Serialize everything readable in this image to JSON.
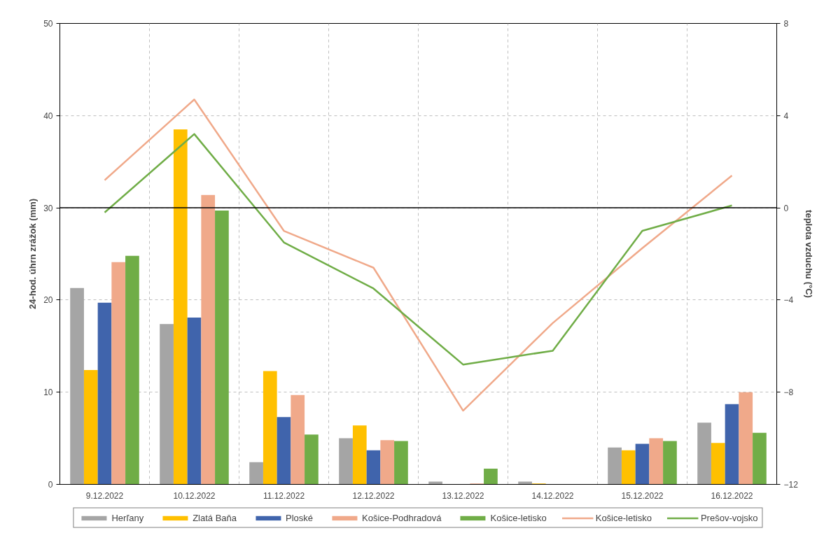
{
  "chart_data": {
    "type": "bar",
    "categories": [
      "9.12.2022",
      "10.12.2022",
      "11.12.2022",
      "12.12.2022",
      "13.12.2022",
      "14.12.2022",
      "15.12.2022",
      "16.12.2022"
    ],
    "ylabel": "24-hod. úhrn zrážok (mm)",
    "y2label": "teplota vzduchu (°C)",
    "ylim": [
      0,
      50
    ],
    "yticks": [
      0,
      10,
      20,
      30,
      40,
      50
    ],
    "y2lim": [
      -12,
      8
    ],
    "y2ticks": [
      -12,
      -8,
      -4,
      0,
      4,
      8
    ],
    "grid": true,
    "legend": "bottom",
    "ref_lines": [
      {
        "axis": "y2",
        "value": 0,
        "color": "#000000"
      }
    ],
    "series": [
      {
        "name": "Herľany",
        "color": "#a5a5a5",
        "values": [
          21.3,
          17.4,
          2.4,
          5.0,
          0.3,
          0.3,
          4.0,
          6.7
        ]
      },
      {
        "name": "Zlatá Baňa",
        "color": "#ffc000",
        "values": [
          12.4,
          38.5,
          12.3,
          6.4,
          0,
          0.1,
          3.7,
          4.5
        ]
      },
      {
        "name": "Ploské",
        "color": "#4064ac",
        "values": [
          19.7,
          18.1,
          7.3,
          3.7,
          0,
          0,
          4.4,
          8.7
        ]
      },
      {
        "name": "Košice-Podhradová",
        "color": "#f0a98a",
        "values": [
          24.1,
          31.4,
          9.7,
          4.8,
          0.1,
          0,
          5.0,
          10.0
        ]
      },
      {
        "name": "Košice-letisko",
        "color": "#70ad47",
        "values": [
          24.8,
          29.7,
          5.4,
          4.7,
          1.7,
          0,
          4.7,
          5.6
        ]
      },
      {
        "name": "Košice-letisko",
        "type": "line",
        "axis": "y2",
        "color": "#f0a98a",
        "values": [
          1.2,
          4.7,
          -1.0,
          -2.6,
          -8.8,
          -5.0,
          -1.75,
          1.4
        ]
      },
      {
        "name": "Prešov-vojsko",
        "type": "line",
        "axis": "y2",
        "color": "#70ad47",
        "values": [
          -0.2,
          3.2,
          -1.5,
          -3.5,
          -6.8,
          -6.2,
          -1.0,
          0.1
        ]
      }
    ]
  }
}
